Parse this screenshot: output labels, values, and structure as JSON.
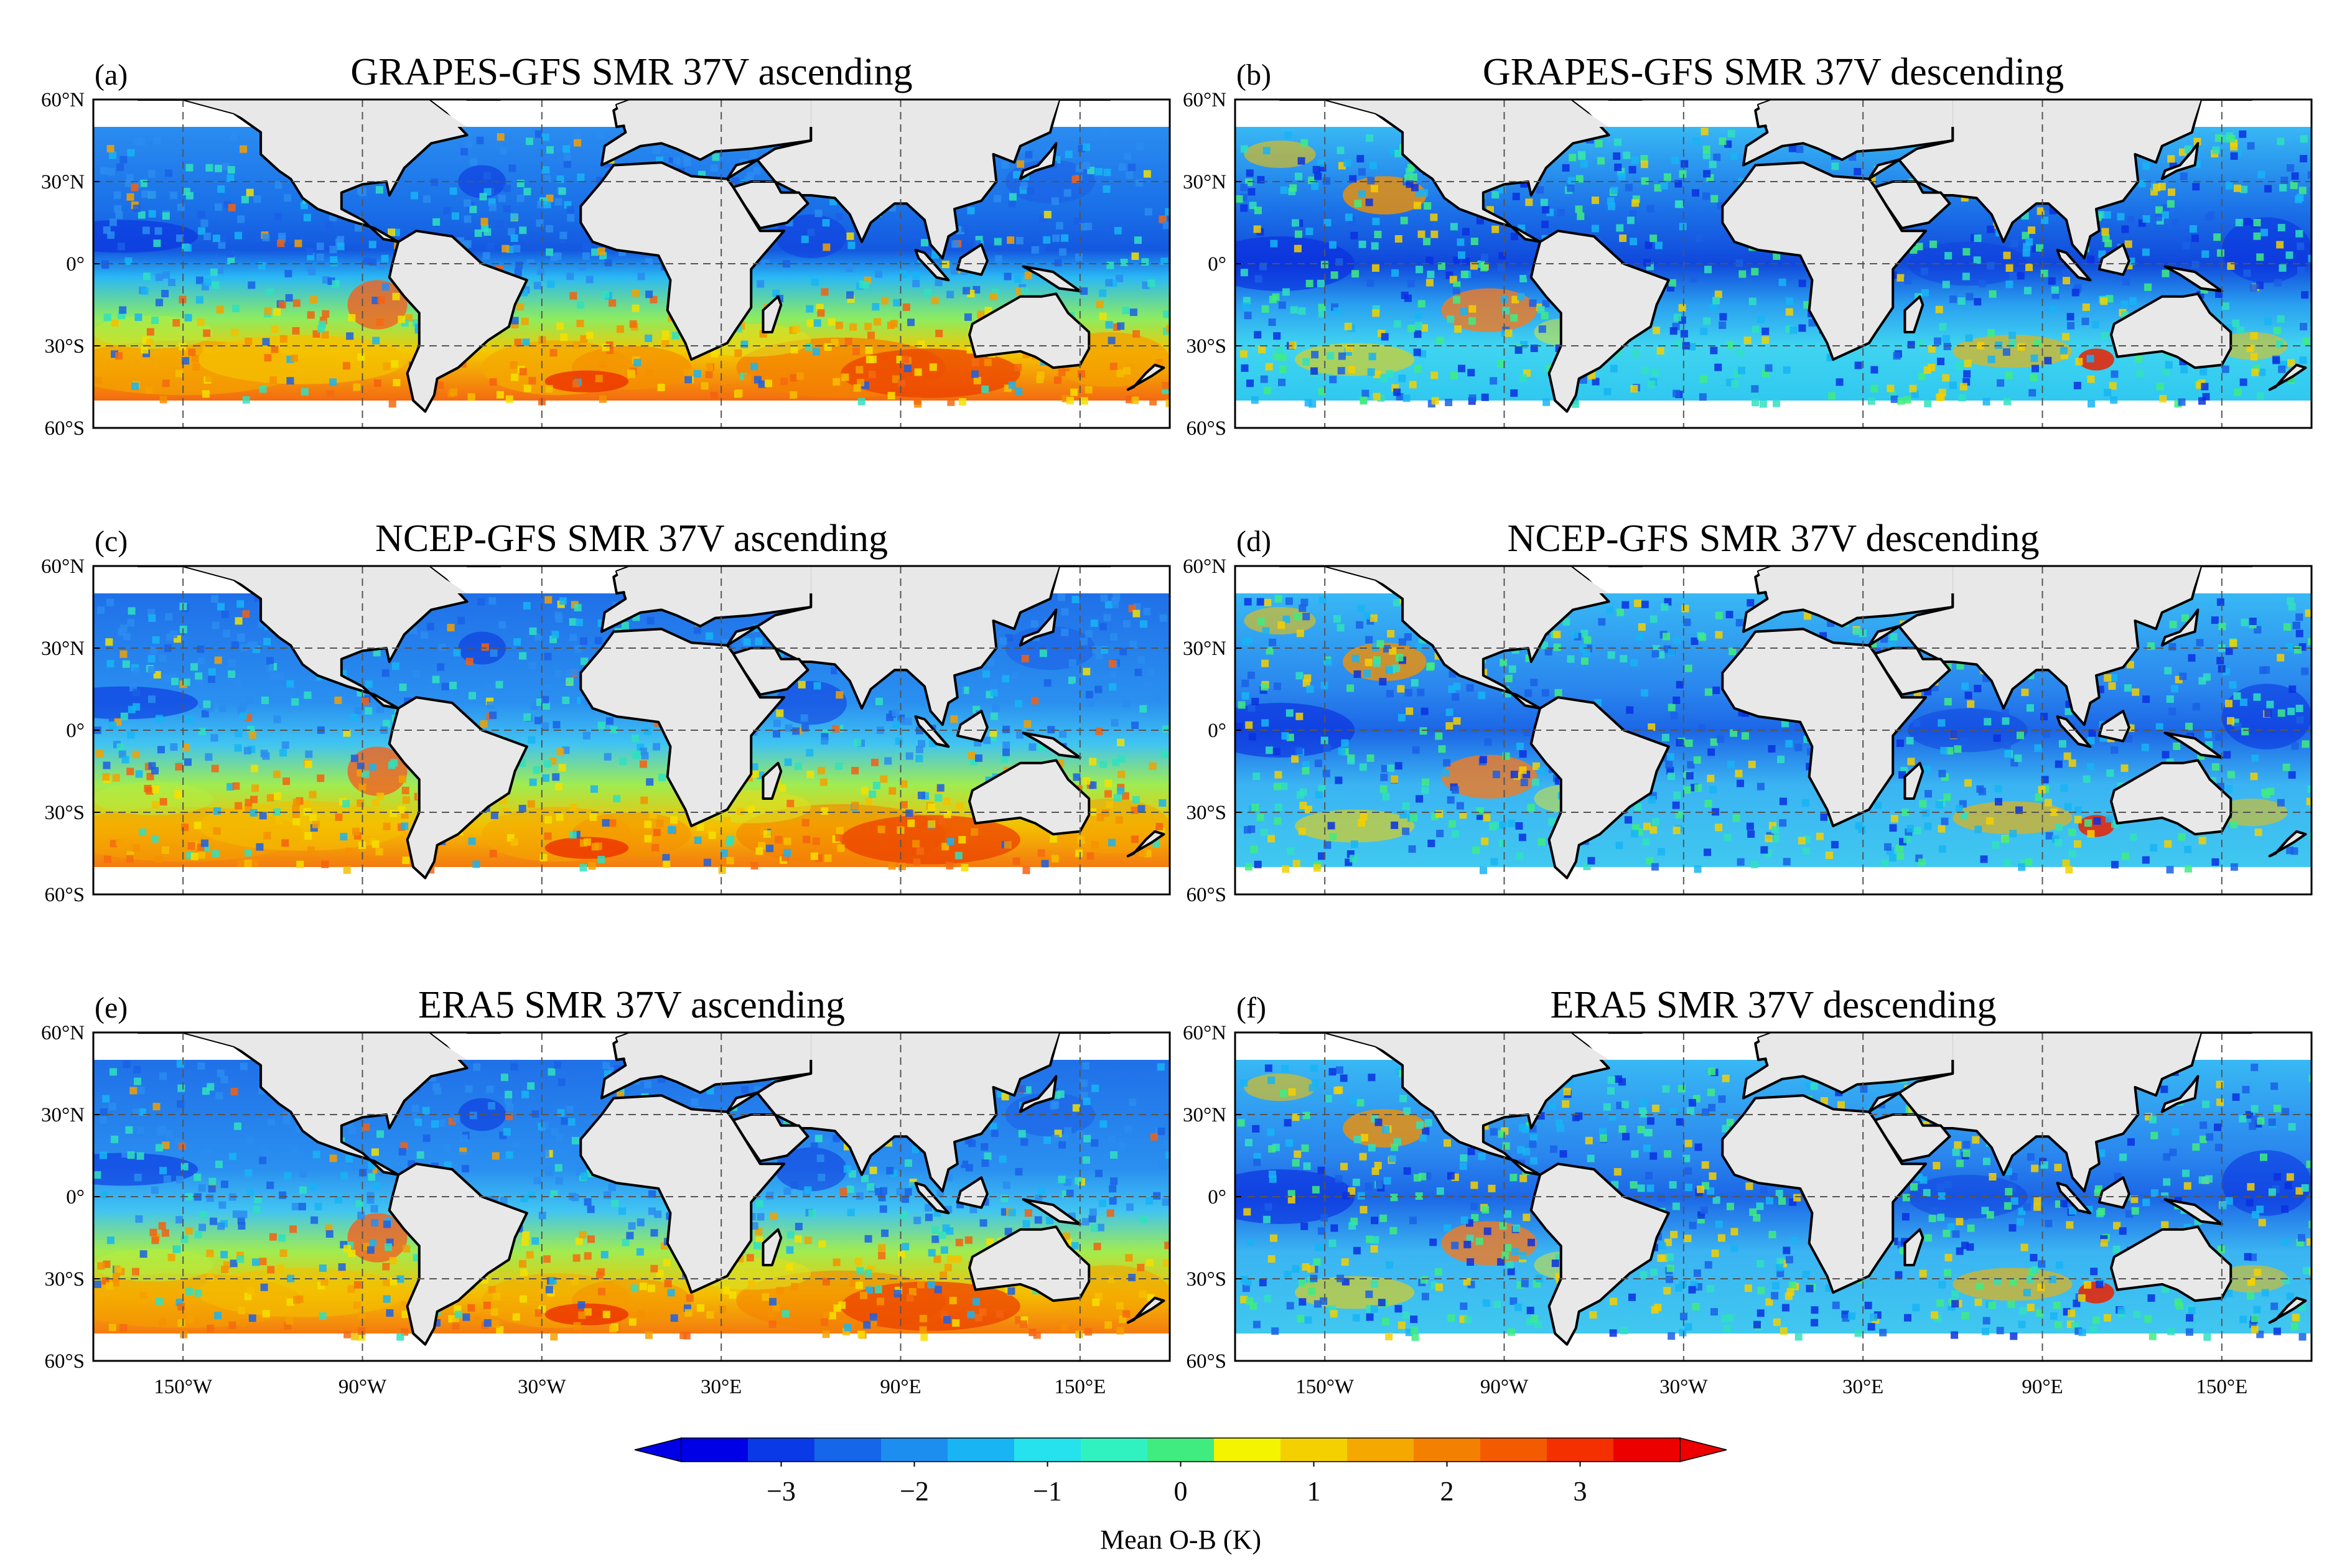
{
  "panels": [
    {
      "label": "(a)",
      "title": "GRAPES-GFS SMR 37V ascending"
    },
    {
      "label": "(b)",
      "title": "GRAPES-GFS SMR 37V descending"
    },
    {
      "label": "(c)",
      "title": "NCEP-GFS SMR 37V ascending"
    },
    {
      "label": "(d)",
      "title": "NCEP-GFS SMR 37V descending"
    },
    {
      "label": "(e)",
      "title": "ERA5 SMR 37V ascending"
    },
    {
      "label": "(f)",
      "title": "ERA5 SMR 37V descending"
    }
  ],
  "lat_ticks": [
    "60°N",
    "30°N",
    "0°",
    "30°S",
    "60°S"
  ],
  "lon_ticks": [
    "150°W",
    "90°W",
    "30°W",
    "30°E",
    "90°E",
    "150°E"
  ],
  "colorbar": {
    "label": "Mean O-B (K)",
    "ticks": [
      "−3",
      "−2",
      "−1",
      "0",
      "1",
      "2",
      "3"
    ],
    "range": [
      -3.75,
      3.75
    ],
    "colors": [
      "#0000e6",
      "#0a3ae6",
      "#1566e8",
      "#1c8ef0",
      "#18b4f4",
      "#25e2ec",
      "#30f2c0",
      "#40ec80",
      "#f4f400",
      "#f4d000",
      "#f4a800",
      "#f48000",
      "#f45a00",
      "#f43000",
      "#ec0000"
    ]
  },
  "map_colors": {
    "land": "#e8e8e8",
    "coast": "#000000",
    "grid": "#555555"
  }
}
